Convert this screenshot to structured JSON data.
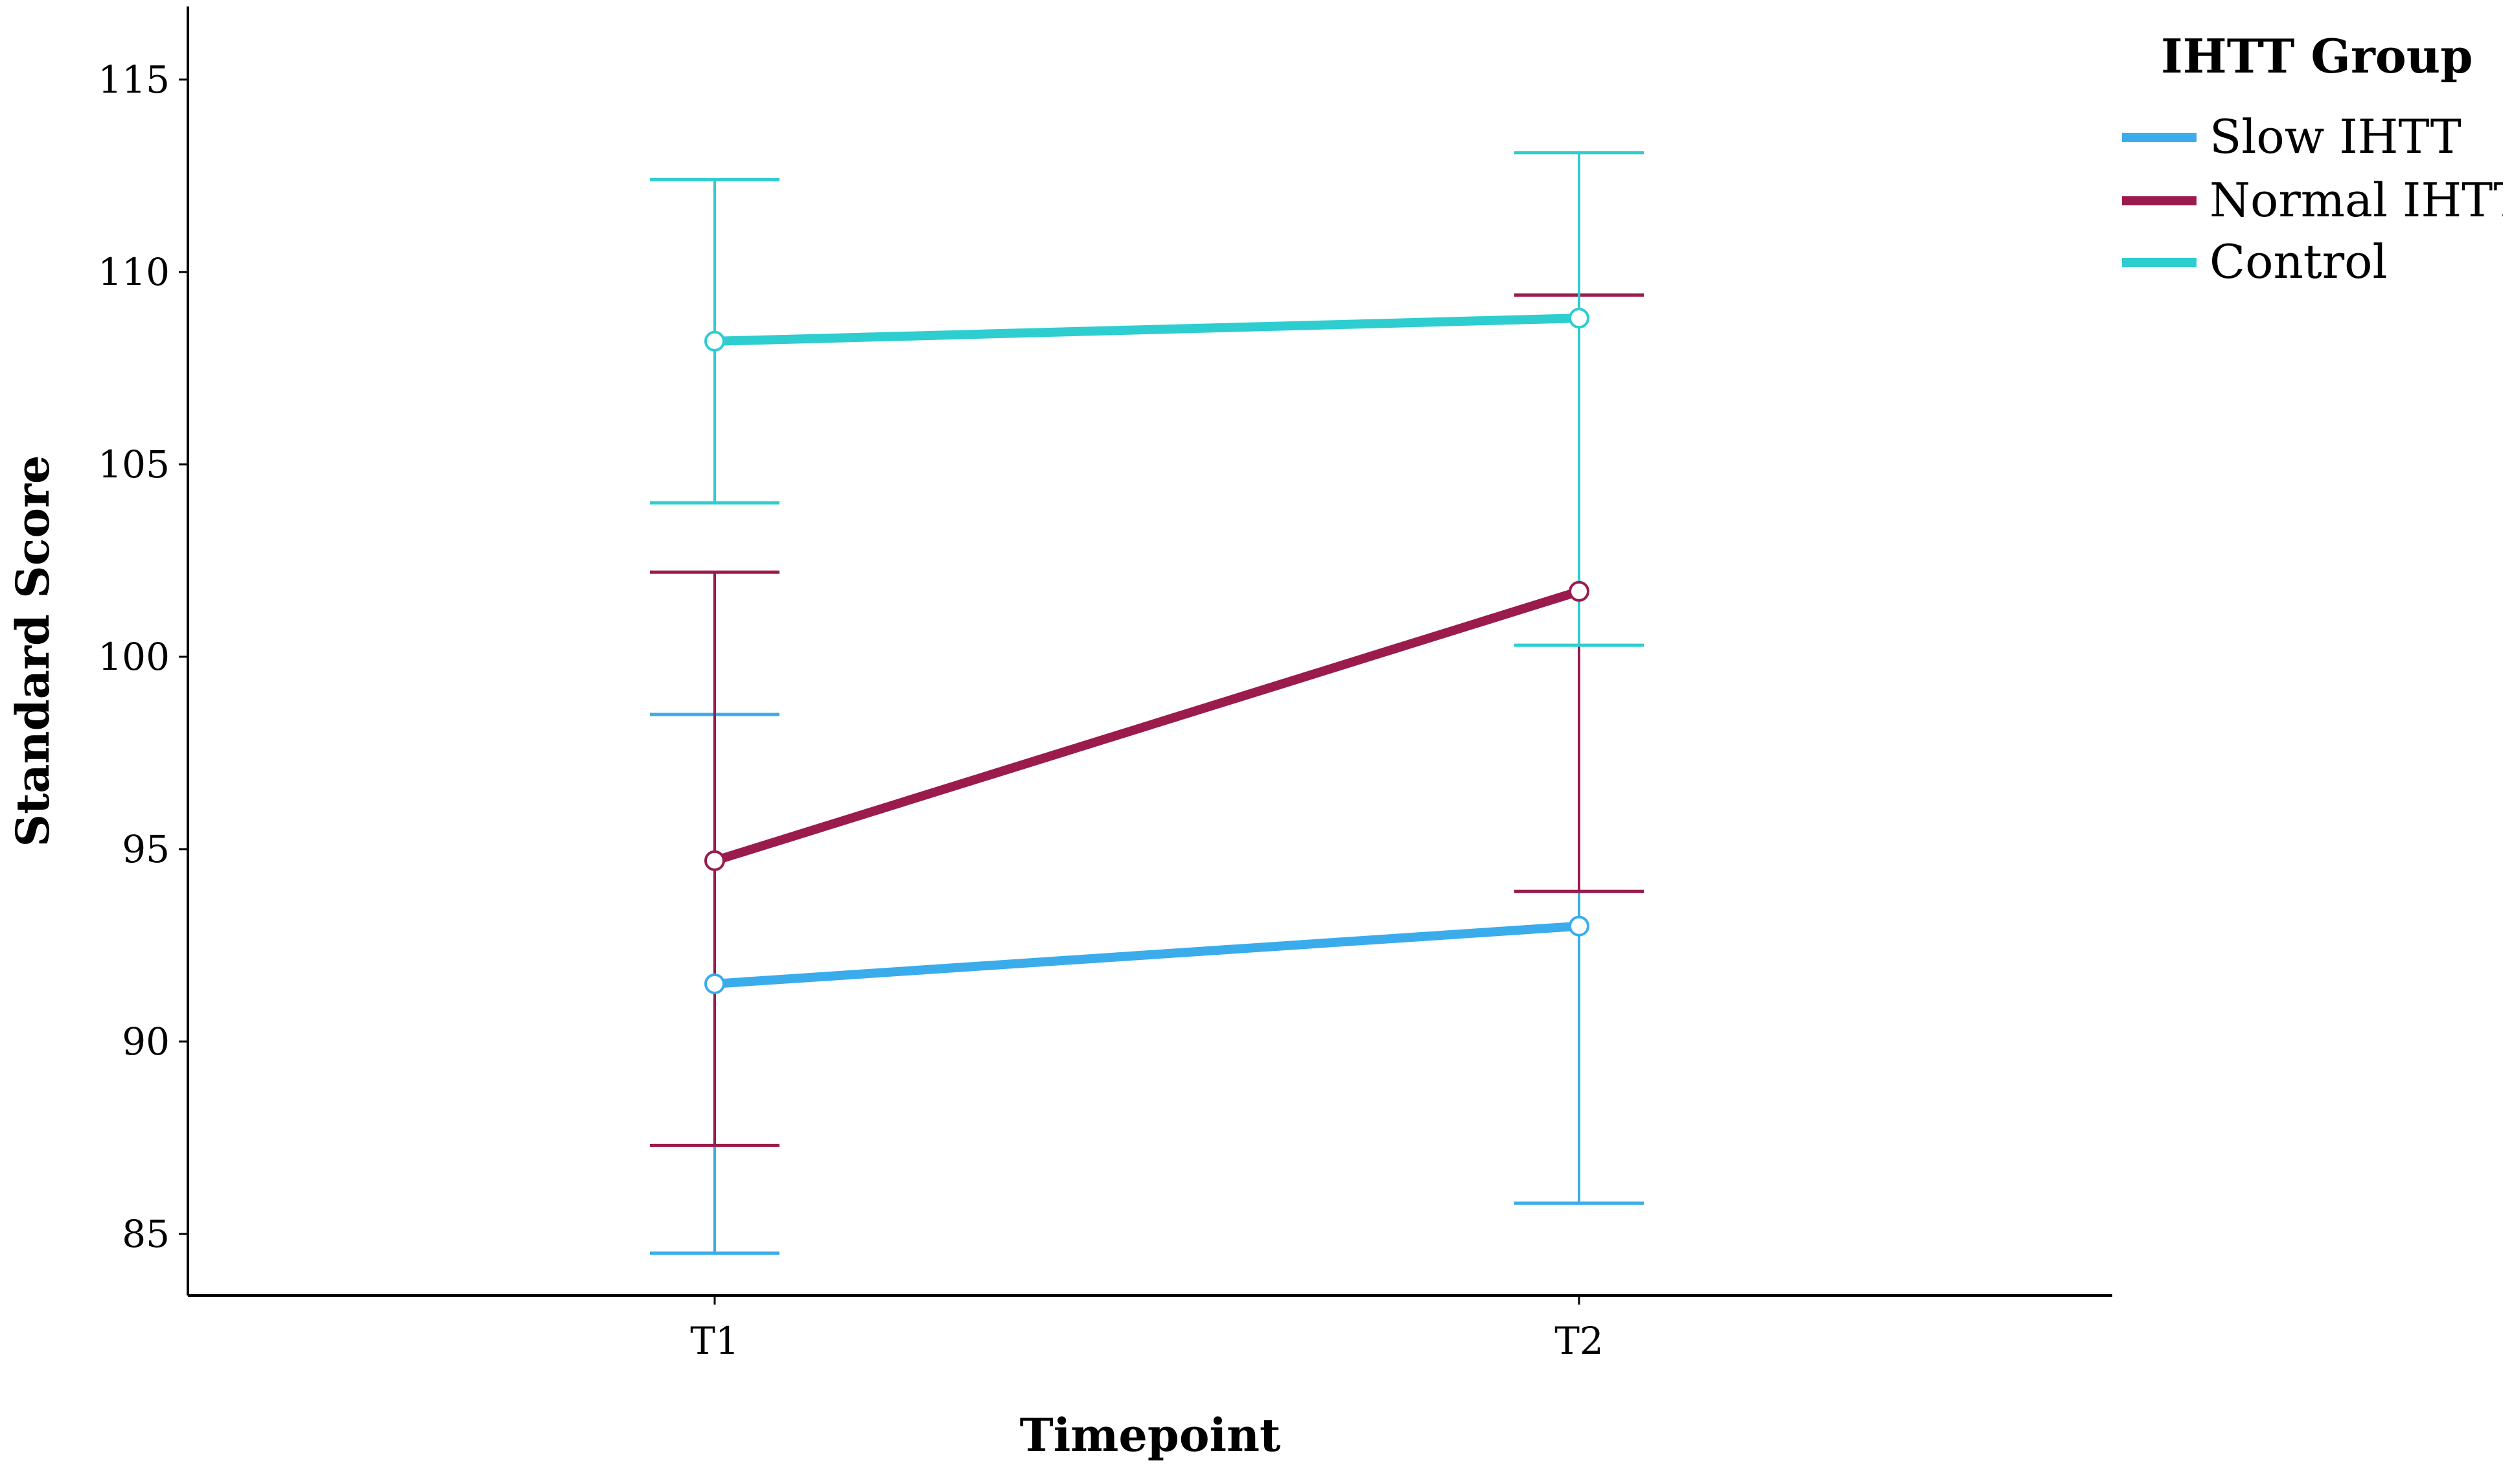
{
  "chart_data": {
    "type": "line",
    "title": "",
    "xlabel": "Timepoint",
    "ylabel": "Standard Score",
    "categories": [
      "T1",
      "T2"
    ],
    "ylim": [
      83.4,
      116.9
    ],
    "yticks": [
      85,
      90,
      95,
      100,
      105,
      110,
      115
    ],
    "grid": false,
    "legend": {
      "title": "IHTT Group",
      "placement": "top-right"
    },
    "series": [
      {
        "name": "Slow IHTT",
        "color": "#3AACEB",
        "values": [
          91.5,
          93.0
        ],
        "error_low": [
          84.5,
          85.8
        ],
        "error_high": [
          98.5,
          93.9
        ]
      },
      {
        "name": "Normal IHTT",
        "color": "#9B1B4C",
        "values": [
          94.7,
          101.7
        ],
        "error_low": [
          87.3,
          93.9
        ],
        "error_high": [
          102.2,
          109.4
        ]
      },
      {
        "name": "Control",
        "color": "#2ECDD0",
        "values": [
          108.2,
          108.8
        ],
        "error_low": [
          104.0,
          100.3
        ],
        "error_high": [
          112.4,
          113.1
        ]
      }
    ]
  }
}
